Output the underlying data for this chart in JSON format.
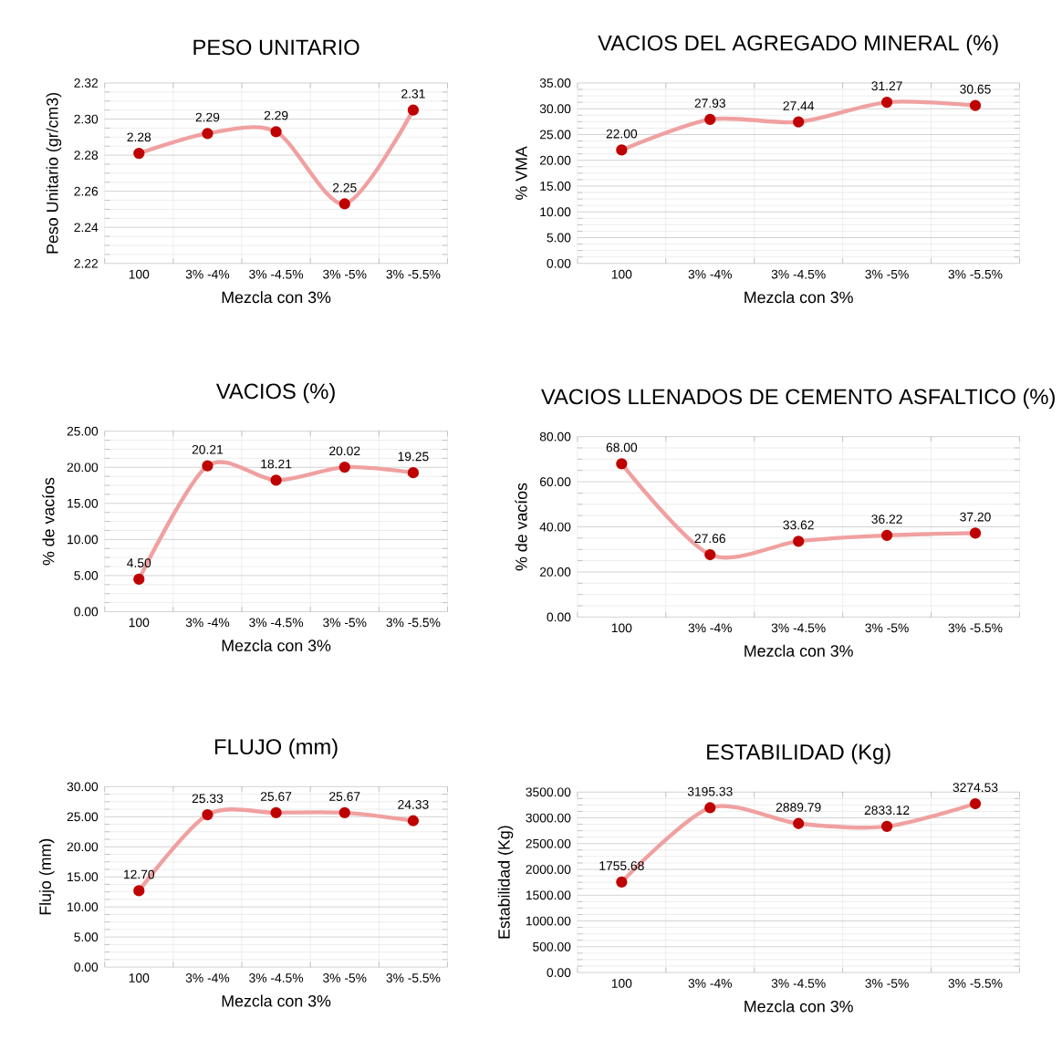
{
  "chart_data": [
    {
      "type": "line",
      "title": "PESO UNITARIO",
      "xlabel": "Mezcla con 3%",
      "ylabel": "Peso Unitario (gr/cm3)",
      "categories": [
        "100",
        "3% -4%",
        "3% -4.5%",
        "3% -5%",
        "3% -5.5%"
      ],
      "values": [
        2.281,
        2.292,
        2.293,
        2.253,
        2.305
      ],
      "value_labels": [
        "2.28",
        "2.29",
        "2.29",
        "2.25",
        "2.31"
      ],
      "color": "#f0a0a0",
      "marker": "circle",
      "grid": true,
      "ylim": [
        2.22,
        2.32
      ],
      "yticks": [
        {
          "value": 2.22,
          "label": "2.22"
        },
        {
          "value": 2.24,
          "label": "2.24"
        },
        {
          "value": 2.26,
          "label": "2.26"
        },
        {
          "value": 2.28,
          "label": "2.28"
        },
        {
          "value": 2.3,
          "label": "2.30"
        },
        {
          "value": 2.32,
          "label": "2.32"
        }
      ]
    },
    {
      "type": "line",
      "title": "VACIOS DEL AGREGADO MINERAL (%)",
      "xlabel": "Mezcla con 3%",
      "ylabel": "% VMA",
      "categories": [
        "100",
        "3% -4%",
        "3% -4.5%",
        "3% -5%",
        "3% -5.5%"
      ],
      "values": [
        22.0,
        27.93,
        27.44,
        31.27,
        30.65
      ],
      "value_labels": [
        "22.00",
        "27.93",
        "27.44",
        "31.27",
        "30.65"
      ],
      "color": "#f0a0a0",
      "marker": "circle",
      "grid": true,
      "ylim": [
        0,
        35
      ],
      "yticks": [
        {
          "value": 0,
          "label": "0.00"
        },
        {
          "value": 5,
          "label": "5.00"
        },
        {
          "value": 10,
          "label": "10.00"
        },
        {
          "value": 15,
          "label": "15.00"
        },
        {
          "value": 20,
          "label": "20.00"
        },
        {
          "value": 25,
          "label": "25.00"
        },
        {
          "value": 30,
          "label": "30.00"
        },
        {
          "value": 35,
          "label": "35.00"
        }
      ]
    },
    {
      "type": "line",
      "title": "VACIOS (%)",
      "xlabel": "Mezcla con 3%",
      "ylabel": "% de vacíos",
      "categories": [
        "100",
        "3% -4%",
        "3% -4.5%",
        "3% -5%",
        "3% -5.5%"
      ],
      "values": [
        4.5,
        20.21,
        18.21,
        20.02,
        19.25
      ],
      "value_labels": [
        "4.50",
        "20.21",
        "18.21",
        "20.02",
        "19.25"
      ],
      "color": "#f0a0a0",
      "marker": "circle",
      "grid": true,
      "ylim": [
        0,
        25
      ],
      "yticks": [
        {
          "value": 0,
          "label": "0.00"
        },
        {
          "value": 5,
          "label": "5.00"
        },
        {
          "value": 10,
          "label": "10.00"
        },
        {
          "value": 15,
          "label": "15.00"
        },
        {
          "value": 20,
          "label": "20.00"
        },
        {
          "value": 25,
          "label": "25.00"
        }
      ]
    },
    {
      "type": "line",
      "title": "VACIOS LLENADOS DE CEMENTO ASFALTICO (%)",
      "xlabel": "Mezcla con 3%",
      "ylabel": "% de vacíos",
      "categories": [
        "100",
        "3% -4%",
        "3% -4.5%",
        "3% -5%",
        "3% -5.5%"
      ],
      "values": [
        68.0,
        27.66,
        33.62,
        36.22,
        37.2
      ],
      "value_labels": [
        "68.00",
        "27.66",
        "33.62",
        "36.22",
        "37.20"
      ],
      "color": "#f0a0a0",
      "marker": "circle",
      "grid": true,
      "ylim": [
        0,
        80
      ],
      "yticks": [
        {
          "value": 0,
          "label": "0.00"
        },
        {
          "value": 20,
          "label": "20.00"
        },
        {
          "value": 40,
          "label": "40.00"
        },
        {
          "value": 60,
          "label": "60.00"
        },
        {
          "value": 80,
          "label": "80.00"
        }
      ]
    },
    {
      "type": "line",
      "title": "FLUJO (mm)",
      "xlabel": "Mezcla con 3%",
      "ylabel": "Flujo (mm)",
      "categories": [
        "100",
        "3% -4%",
        "3% -4.5%",
        "3% -5%",
        "3% -5.5%"
      ],
      "values": [
        12.7,
        25.33,
        25.67,
        25.67,
        24.33
      ],
      "value_labels": [
        "12.70",
        "25.33",
        "25.67",
        "25.67",
        "24.33"
      ],
      "color": "#f0a0a0",
      "marker": "circle",
      "grid": true,
      "ylim": [
        0,
        30
      ],
      "yticks": [
        {
          "value": 0,
          "label": "0.00"
        },
        {
          "value": 5,
          "label": "5.00"
        },
        {
          "value": 10,
          "label": "10.00"
        },
        {
          "value": 15,
          "label": "15.00"
        },
        {
          "value": 20,
          "label": "20.00"
        },
        {
          "value": 25,
          "label": "25.00"
        },
        {
          "value": 30,
          "label": "30.00"
        }
      ]
    },
    {
      "type": "line",
      "title": "ESTABILIDAD (Kg)",
      "xlabel": "Mezcla con 3%",
      "ylabel": "Estabilidad (Kg)",
      "categories": [
        "100",
        "3% -4%",
        "3% -4.5%",
        "3% -5%",
        "3% -5.5%"
      ],
      "values": [
        1755.68,
        3195.33,
        2889.79,
        2833.12,
        3274.53
      ],
      "value_labels": [
        "1755.68",
        "3195.33",
        "2889.79",
        "2833.12",
        "3274.53"
      ],
      "color": "#f0a0a0",
      "marker": "circle",
      "grid": true,
      "ylim": [
        0,
        3500
      ],
      "yticks": [
        {
          "value": 0,
          "label": "0.00"
        },
        {
          "value": 500,
          "label": "500.00"
        },
        {
          "value": 1000,
          "label": "1000.00"
        },
        {
          "value": 1500,
          "label": "1500.00"
        },
        {
          "value": 2000,
          "label": "2000.00"
        },
        {
          "value": 2500,
          "label": "2500.00"
        },
        {
          "value": 3000,
          "label": "3000.00"
        },
        {
          "value": 3500,
          "label": "3500.00"
        }
      ]
    }
  ]
}
